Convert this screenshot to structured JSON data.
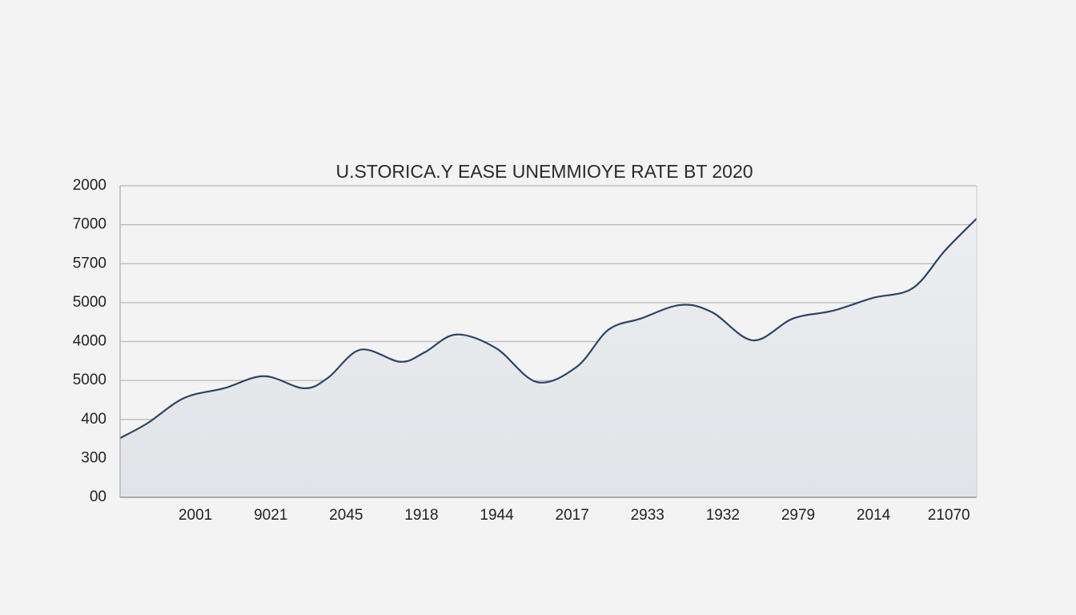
{
  "chart_data": {
    "type": "area",
    "title": "U.STORICA.Y EASE UNEMMIOYE RATE BT 2020",
    "x": [
      0,
      0.37,
      0.85,
      1.38,
      1.91,
      2.44,
      2.76,
      3.19,
      3.72,
      4.04,
      4.46,
      4.99,
      5.53,
      6.06,
      6.48,
      6.91,
      7.44,
      7.86,
      8.4,
      8.93,
      9.46,
      9.99,
      10.52,
      10.95,
      11.37
    ],
    "series": [
      {
        "color": "#2b4468",
        "values": [
          1.52,
          1.91,
          2.55,
          2.8,
          3.11,
          2.8,
          3.07,
          3.79,
          3.48,
          3.72,
          4.18,
          3.83,
          2.96,
          3.35,
          4.3,
          4.59,
          4.94,
          4.75,
          4.03,
          4.59,
          4.79,
          5.12,
          5.37,
          6.34,
          7.16
        ]
      }
    ],
    "xlim": [
      0,
      11.37
    ],
    "xticks": [
      {
        "value": 1,
        "label": "2001"
      },
      {
        "value": 2,
        "label": "9021"
      },
      {
        "value": 3,
        "label": "2045"
      },
      {
        "value": 4,
        "label": "1918"
      },
      {
        "value": 5,
        "label": "1944"
      },
      {
        "value": 6,
        "label": "2017"
      },
      {
        "value": 7,
        "label": "2933"
      },
      {
        "value": 8,
        "label": "1932"
      },
      {
        "value": 9,
        "label": "2979"
      },
      {
        "value": 10,
        "label": "2014"
      },
      {
        "value": 11,
        "label": "21070"
      }
    ],
    "ylim": [
      0,
      8
    ],
    "yticks": [
      {
        "value": 0,
        "label": "00"
      },
      {
        "value": 1,
        "label": "300"
      },
      {
        "value": 2,
        "label": "400"
      },
      {
        "value": 3,
        "label": "5000"
      },
      {
        "value": 4,
        "label": "4000"
      },
      {
        "value": 5,
        "label": "5000"
      },
      {
        "value": 6,
        "label": "5700"
      },
      {
        "value": 7,
        "label": "7000"
      },
      {
        "value": 8,
        "label": "2000"
      }
    ],
    "grid": true
  }
}
